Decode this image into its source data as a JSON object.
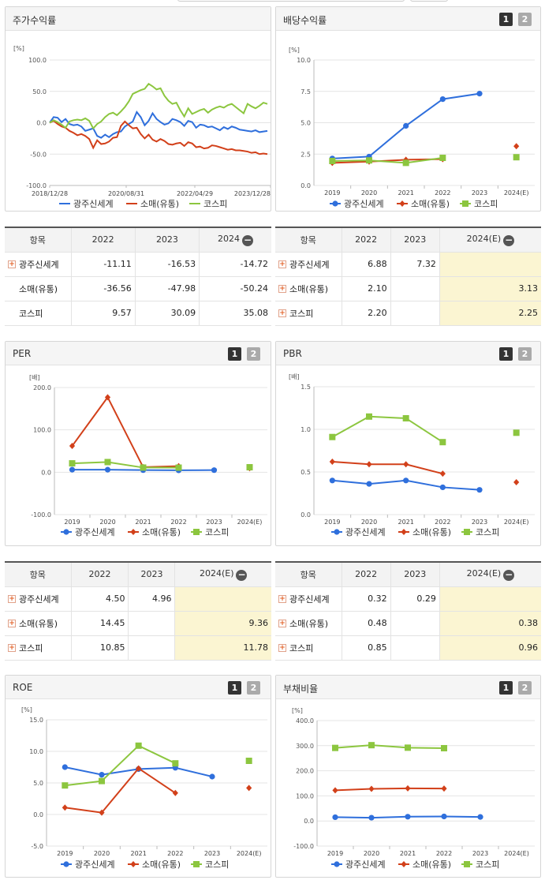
{
  "colors": {
    "company": "#2f6fdc",
    "retail": "#d2401a",
    "kospi": "#8cc63f"
  },
  "legend": [
    "광주신세계",
    "소매(유통)",
    "코스피"
  ],
  "top_corner_text": "",
  "panels": {
    "stock": {
      "title": "주가수익률",
      "unit": "[%]"
    },
    "div": {
      "title": "배당수익률",
      "unit": "[%]",
      "btn1": "1",
      "btn2": "2"
    },
    "per": {
      "title": "PER",
      "unit": "[배]",
      "btn1": "1",
      "btn2": "2"
    },
    "pbr": {
      "title": "PBR",
      "unit": "[배]",
      "btn1": "1",
      "btn2": "2"
    },
    "roe": {
      "title": "ROE",
      "unit": "[%]",
      "btn1": "1",
      "btn2": "2"
    },
    "debt": {
      "title": "부채비율",
      "unit": "[%]",
      "btn1": "1",
      "btn2": "2"
    }
  },
  "tables": {
    "stock": {
      "headers": [
        "항목",
        "2022",
        "2023",
        "2024"
      ],
      "rows": [
        {
          "name": "광주신세계",
          "plus": true,
          "v": [
            "-11.11",
            "-16.53",
            "-14.72"
          ]
        },
        {
          "name": "소매(유통)",
          "plus": false,
          "v": [
            "-36.56",
            "-47.98",
            "-50.24"
          ]
        },
        {
          "name": "코스피",
          "plus": false,
          "v": [
            "9.57",
            "30.09",
            "35.08"
          ]
        }
      ]
    },
    "div": {
      "headers": [
        "항목",
        "2022",
        "2023",
        "2024(E)"
      ],
      "rows": [
        {
          "name": "광주신세계",
          "plus": true,
          "v": [
            "6.88",
            "7.32",
            ""
          ]
        },
        {
          "name": "소매(유통)",
          "plus": true,
          "v": [
            "2.10",
            "",
            "3.13"
          ]
        },
        {
          "name": "코스피",
          "plus": true,
          "v": [
            "2.20",
            "",
            "2.25"
          ]
        }
      ]
    },
    "per": {
      "headers": [
        "항목",
        "2022",
        "2023",
        "2024(E)"
      ],
      "rows": [
        {
          "name": "광주신세계",
          "plus": true,
          "v": [
            "4.50",
            "4.96",
            ""
          ]
        },
        {
          "name": "소매(유통)",
          "plus": true,
          "v": [
            "14.45",
            "",
            "9.36"
          ]
        },
        {
          "name": "코스피",
          "plus": true,
          "v": [
            "10.85",
            "",
            "11.78"
          ]
        }
      ]
    },
    "pbr": {
      "headers": [
        "항목",
        "2022",
        "2023",
        "2024(E)"
      ],
      "rows": [
        {
          "name": "광주신세계",
          "plus": true,
          "v": [
            "0.32",
            "0.29",
            ""
          ]
        },
        {
          "name": "소매(유통)",
          "plus": true,
          "v": [
            "0.48",
            "",
            "0.38"
          ]
        },
        {
          "name": "코스피",
          "plus": true,
          "v": [
            "0.85",
            "",
            "0.96"
          ]
        }
      ]
    }
  },
  "chart_data": [
    {
      "id": "stock",
      "type": "line",
      "title": "주가수익률",
      "ylabel": "[%]",
      "ylim": [
        -100,
        100
      ],
      "yticks": [
        "100.0",
        "50.0",
        "0.0",
        "-50.0",
        "-100.0"
      ],
      "xticks": [
        "2018/12/28",
        "2020/08/31",
        "2022/04/29",
        "2023/12/28"
      ],
      "series": [
        {
          "name": "광주신세계",
          "values": [
            0,
            9,
            8,
            1,
            6,
            -2,
            -4,
            -3,
            -6,
            -13,
            -11,
            -9,
            -21,
            -24,
            -19,
            -23,
            -18,
            -15,
            -14,
            -6,
            -2,
            2,
            17,
            9,
            -4,
            3,
            15,
            6,
            1,
            -3,
            -1,
            6,
            4,
            1,
            -5,
            3,
            1,
            -8,
            -3,
            -4,
            -7,
            -6,
            -9,
            -12,
            -7,
            -10,
            -6,
            -8,
            -11,
            -12,
            -13,
            -14,
            -12,
            -15,
            -14,
            -13
          ]
        },
        {
          "name": "소매(유통)",
          "values": [
            0,
            3,
            -2,
            -6,
            -8,
            -13,
            -16,
            -20,
            -18,
            -21,
            -26,
            -40,
            -28,
            -34,
            -33,
            -30,
            -24,
            -23,
            -5,
            2,
            -4,
            -9,
            -8,
            -18,
            -25,
            -19,
            -27,
            -30,
            -26,
            -29,
            -34,
            -35,
            -33,
            -32,
            -37,
            -31,
            -33,
            -39,
            -38,
            -41,
            -40,
            -36,
            -37,
            -39,
            -41,
            -43,
            -42,
            -44,
            -44,
            -45,
            -46,
            -48,
            -47,
            -50,
            -49,
            -50
          ]
        },
        {
          "name": "코스피",
          "values": [
            0,
            4,
            1,
            -3,
            -8,
            2,
            4,
            5,
            4,
            7,
            3,
            -9,
            -2,
            2,
            9,
            14,
            16,
            12,
            18,
            25,
            34,
            46,
            49,
            52,
            54,
            62,
            58,
            53,
            55,
            43,
            35,
            30,
            32,
            20,
            10,
            23,
            14,
            17,
            20,
            22,
            16,
            21,
            24,
            26,
            24,
            28,
            30,
            25,
            20,
            15,
            30,
            26,
            23,
            27,
            32,
            30
          ]
        }
      ]
    },
    {
      "id": "div",
      "type": "line",
      "title": "배당수익률",
      "ylabel": "[%]",
      "ylim": [
        0,
        10
      ],
      "yticks": [
        "10.0",
        "7.5",
        "5.0",
        "2.5",
        "0.0"
      ],
      "categories": [
        "2019",
        "2020",
        "2021",
        "2022",
        "2023",
        "2024(E)"
      ],
      "series": [
        {
          "name": "광주신세계",
          "values": [
            2.15,
            2.3,
            4.75,
            6.88,
            7.32,
            null
          ]
        },
        {
          "name": "소매(유통)",
          "values": [
            1.8,
            1.9,
            2.05,
            2.1,
            null,
            3.13
          ]
        },
        {
          "name": "코스피",
          "values": [
            1.95,
            2.0,
            1.8,
            2.2,
            null,
            2.25
          ]
        }
      ]
    },
    {
      "id": "per",
      "type": "line",
      "title": "PER",
      "ylabel": "[배]",
      "ylim": [
        -100,
        200
      ],
      "yticks": [
        "200.0",
        "100.0",
        "0.0",
        "-100.0"
      ],
      "categories": [
        "2019",
        "2020",
        "2021",
        "2022",
        "2023",
        "2024(E)"
      ],
      "series": [
        {
          "name": "광주신세계",
          "values": [
            6,
            6,
            5,
            4.5,
            4.96,
            null
          ]
        },
        {
          "name": "소매(유통)",
          "values": [
            62,
            177,
            12,
            14.45,
            null,
            9.36
          ]
        },
        {
          "name": "코스피",
          "values": [
            21,
            24,
            11,
            10.85,
            null,
            11.78
          ]
        }
      ]
    },
    {
      "id": "pbr",
      "type": "line",
      "title": "PBR",
      "ylabel": "[배]",
      "ylim": [
        0,
        1.5
      ],
      "yticks": [
        "1.5",
        "1.0",
        "0.5",
        "0.0"
      ],
      "categories": [
        "2019",
        "2020",
        "2021",
        "2022",
        "2023",
        "2024(E)"
      ],
      "series": [
        {
          "name": "광주신세계",
          "values": [
            0.4,
            0.36,
            0.4,
            0.32,
            0.29,
            null
          ]
        },
        {
          "name": "소매(유통)",
          "values": [
            0.62,
            0.59,
            0.59,
            0.48,
            null,
            0.38
          ]
        },
        {
          "name": "코스피",
          "values": [
            0.91,
            1.15,
            1.13,
            0.85,
            null,
            0.96
          ]
        }
      ]
    },
    {
      "id": "roe",
      "type": "line",
      "title": "ROE",
      "ylabel": "[%]",
      "ylim": [
        -5,
        15
      ],
      "yticks": [
        "15.0",
        "10.0",
        "5.0",
        "0.0",
        "-5.0"
      ],
      "categories": [
        "2019",
        "2020",
        "2021",
        "2022",
        "2023",
        "2024(E)"
      ],
      "series": [
        {
          "name": "광주신세계",
          "values": [
            7.5,
            6.3,
            7.2,
            7.4,
            6.0,
            null
          ]
        },
        {
          "name": "소매(유통)",
          "values": [
            1.1,
            0.3,
            7.3,
            3.4,
            null,
            4.2
          ]
        },
        {
          "name": "코스피",
          "values": [
            4.6,
            5.3,
            10.9,
            8.1,
            null,
            8.5
          ]
        }
      ]
    },
    {
      "id": "debt",
      "type": "line",
      "title": "부채비율",
      "ylabel": "[%]",
      "ylim": [
        -100,
        400
      ],
      "yticks": [
        "400.0",
        "300.0",
        "200.0",
        "100.0",
        "0.0",
        "-100.0"
      ],
      "categories": [
        "2019",
        "2020",
        "2021",
        "2022",
        "2023",
        "2024(E)"
      ],
      "series": [
        {
          "name": "광주신세계",
          "values": [
            15,
            13,
            17,
            18,
            16,
            null
          ]
        },
        {
          "name": "소매(유통)",
          "values": [
            122,
            128,
            130,
            129,
            null,
            null
          ]
        },
        {
          "name": "코스피",
          "values": [
            291,
            302,
            292,
            290,
            null,
            null
          ]
        }
      ]
    }
  ]
}
